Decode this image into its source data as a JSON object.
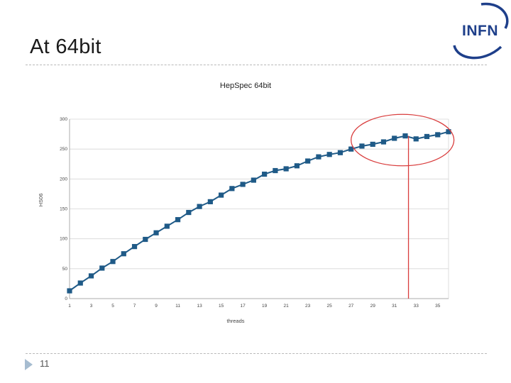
{
  "slide": {
    "title": "At 64bit",
    "page_number": "11",
    "logo_text": "INFN"
  },
  "colors": {
    "series": "#1f5a87",
    "highlight": "#d93d3d",
    "grid": "#d6d6d6",
    "logo": "#1e3f8a"
  },
  "chart_data": {
    "type": "line",
    "title": "HepSpec 64bit",
    "xlabel": "threads",
    "ylabel": "HS06",
    "ylim": [
      0,
      300
    ],
    "yticks": [
      0,
      50,
      100,
      150,
      200,
      250,
      300
    ],
    "xticks": [
      1,
      3,
      5,
      7,
      9,
      11,
      13,
      15,
      17,
      19,
      21,
      23,
      25,
      27,
      29,
      31,
      33,
      35
    ],
    "xlim": [
      1,
      36
    ],
    "grid": true,
    "legend": "none",
    "series": [
      {
        "x": [
          1,
          2,
          3,
          4,
          5,
          6,
          7,
          8,
          9,
          10,
          11,
          12,
          13,
          14,
          15,
          16,
          17,
          18,
          19,
          20,
          21,
          22,
          23,
          24,
          25,
          26,
          27,
          28,
          29,
          30,
          31,
          32,
          33,
          34,
          35,
          36
        ],
        "values": [
          13,
          26,
          38,
          51,
          62,
          75,
          87,
          99,
          110,
          121,
          132,
          144,
          154,
          162,
          173,
          184,
          191,
          198,
          208,
          214,
          217,
          222,
          230,
          237,
          241,
          244,
          250,
          255,
          258,
          262,
          268,
          272,
          267,
          271,
          274,
          279
        ]
      }
    ],
    "annotations": {
      "highlight_ellipse": {
        "x_range": [
          27,
          36.5
        ],
        "y_range": [
          222,
          308
        ]
      },
      "vertical_line_x": 32.3
    }
  }
}
